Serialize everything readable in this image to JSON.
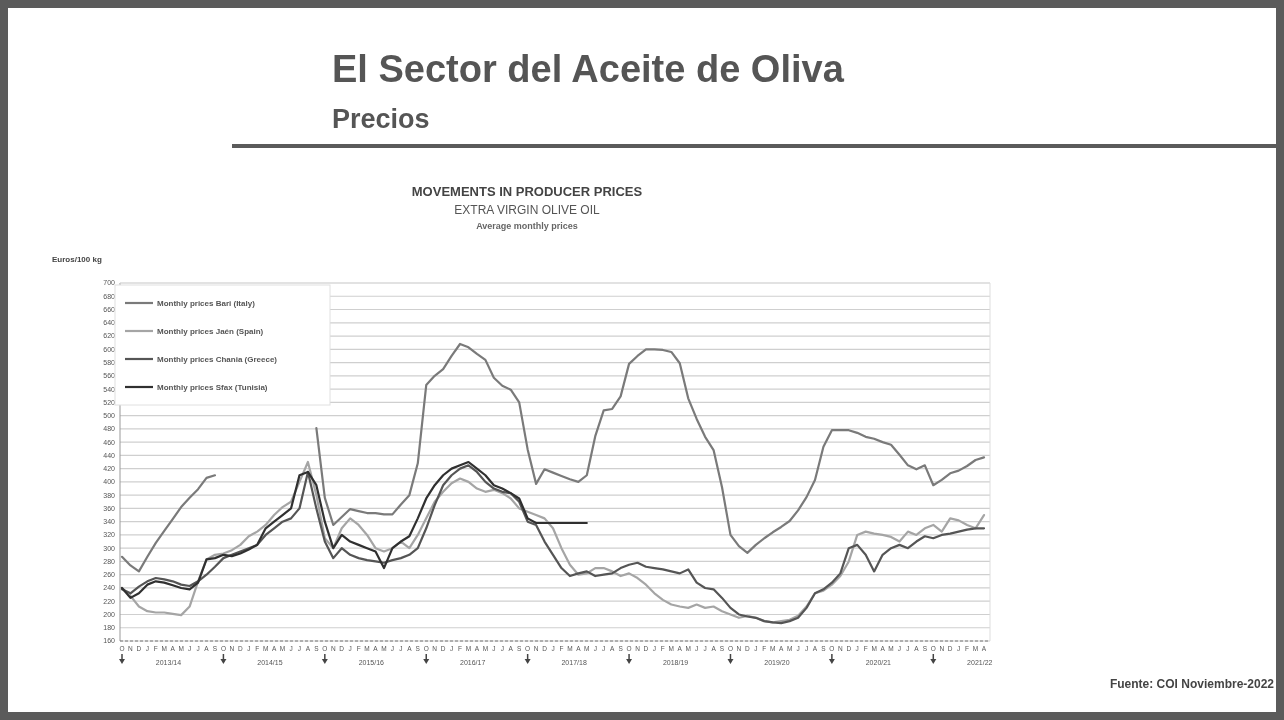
{
  "chart_data": {
    "type": "line",
    "title": "MOVEMENTS IN PRODUCER PRICES",
    "subtitle": "EXTRA VIRGIN OLIVE OIL",
    "ylabel": "Euros/100 kg",
    "categories": [
      "O",
      "N",
      "D",
      "J",
      "F",
      "M",
      "A",
      "M",
      "J",
      "J",
      "A",
      "S",
      "O",
      "N",
      "D",
      "J",
      "F",
      "M",
      "A",
      "M",
      "J",
      "J",
      "A",
      "S",
      "O",
      "N",
      "D",
      "J",
      "F",
      "M",
      "A",
      "M",
      "J",
      "J",
      "A",
      "S",
      "O",
      "N",
      "D",
      "J",
      "F",
      "M",
      "A",
      "M",
      "J",
      "J",
      "A",
      "S",
      "O",
      "N",
      "D",
      "J",
      "F",
      "M",
      "A",
      "M",
      "J",
      "J",
      "A",
      "S",
      "O",
      "N",
      "D",
      "J",
      "F",
      "M",
      "A",
      "M",
      "J",
      "J",
      "A",
      "S",
      "O",
      "N",
      "D",
      "J",
      "F",
      "M",
      "A",
      "M",
      "J",
      "J",
      "A",
      "S",
      "O",
      "N",
      "D",
      "J",
      "F",
      "M",
      "A",
      "M",
      "J",
      "J",
      "A",
      "S",
      "O",
      "N",
      "D",
      "J",
      "F",
      "M",
      "A"
    ],
    "series": [
      {
        "name": "Monthly prices Bari (Italy)",
        "color": "#7a7a7a",
        "values": [
          287,
          274,
          265,
          287,
          308,
          326,
          344,
          362,
          376,
          389,
          406,
          410,
          null,
          null,
          null,
          null,
          null,
          null,
          null,
          null,
          null,
          null,
          null,
          481,
          376,
          335,
          347,
          359,
          356,
          353,
          353,
          351,
          351,
          366,
          380,
          428,
          546,
          560,
          570,
          590,
          608,
          603,
          593,
          584,
          557,
          545,
          539,
          520,
          449,
          397,
          419,
          414,
          409,
          404,
          400,
          410,
          469,
          508,
          510,
          529,
          578,
          590,
          600,
          600,
          599,
          596,
          579,
          526,
          495,
          468,
          448,
          392,
          320,
          303,
          293,
          305,
          315,
          324,
          332,
          341,
          357,
          377,
          403,
          453,
          478,
          478,
          478,
          474,
          468,
          465,
          460,
          456,
          441,
          425,
          419,
          425,
          395,
          403,
          413,
          417,
          424,
          433,
          437
        ]
      },
      {
        "name": "Monthly prices Jaén (Spain)",
        "color": "#a5a5a5",
        "values": [
          240,
          228,
          212,
          205,
          203,
          203,
          201,
          199,
          212,
          250,
          283,
          290,
          292,
          297,
          305,
          318,
          325,
          335,
          350,
          362,
          370,
          400,
          430,
          380,
          315,
          300,
          330,
          345,
          335,
          320,
          300,
          295,
          300,
          310,
          300,
          320,
          345,
          370,
          385,
          398,
          405,
          400,
          390,
          385,
          388,
          383,
          375,
          360,
          355,
          350,
          345,
          330,
          300,
          275,
          260,
          262,
          270,
          270,
          265,
          258,
          262,
          255,
          245,
          232,
          222,
          215,
          212,
          210,
          215,
          210,
          212,
          205,
          200,
          195,
          198,
          195,
          190,
          188,
          190,
          192,
          198,
          212,
          232,
          236,
          245,
          258,
          280,
          320,
          325,
          322,
          320,
          317,
          310,
          325,
          320,
          330,
          335,
          325,
          345,
          342,
          335,
          330,
          350
        ]
      },
      {
        "name": "Monthly prices Chania (Greece)",
        "color": "#555555",
        "values": [
          238,
          232,
          242,
          250,
          255,
          253,
          250,
          245,
          243,
          250,
          260,
          272,
          285,
          290,
          295,
          300,
          305,
          320,
          330,
          340,
          345,
          360,
          415,
          360,
          310,
          285,
          300,
          290,
          285,
          282,
          280,
          278,
          282,
          285,
          290,
          300,
          330,
          365,
          395,
          410,
          420,
          425,
          415,
          400,
          390,
          385,
          383,
          370,
          340,
          335,
          310,
          290,
          270,
          258,
          262,
          265,
          258,
          260,
          262,
          270,
          275,
          278,
          272,
          270,
          268,
          265,
          262,
          268,
          248,
          240,
          238,
          225,
          210,
          200,
          197,
          195,
          190,
          188,
          187,
          190,
          195,
          210,
          232,
          238,
          248,
          262,
          300,
          305,
          290,
          265,
          290,
          300,
          305,
          300,
          310,
          318,
          315,
          320,
          322,
          325,
          328,
          330,
          330
        ]
      },
      {
        "name": "Monthly prices Sfax (Tunisia)",
        "color": "#303030",
        "values": [
          240,
          225,
          232,
          245,
          250,
          248,
          244,
          240,
          238,
          248,
          283,
          285,
          290,
          288,
          292,
          298,
          305,
          330,
          340,
          350,
          360,
          410,
          415,
          395,
          340,
          300,
          320,
          310,
          305,
          300,
          295,
          270,
          300,
          310,
          318,
          345,
          375,
          395,
          410,
          420,
          425,
          430,
          420,
          410,
          395,
          390,
          383,
          375,
          345,
          338,
          338,
          338,
          338,
          338,
          338,
          338,
          null,
          null,
          null,
          null,
          null,
          null,
          null,
          null,
          null,
          null,
          null,
          null,
          null,
          null,
          null,
          null,
          null,
          null,
          null,
          null,
          null,
          null,
          null,
          null,
          null,
          null,
          null,
          null,
          null,
          null,
          null,
          null,
          null,
          null,
          null,
          null,
          null,
          null,
          null,
          null,
          null,
          null,
          null,
          null,
          null,
          null,
          null
        ]
      }
    ],
    "ylim": [
      160,
      700
    ],
    "yticks": [
      160,
      180,
      200,
      220,
      240,
      260,
      280,
      300,
      320,
      340,
      360,
      380,
      400,
      420,
      440,
      460,
      480,
      500,
      520,
      540,
      560,
      580,
      600,
      620,
      640,
      660,
      680,
      700
    ],
    "grid": "y",
    "legend": "top left",
    "marker": "none",
    "line_style": "solid",
    "annotations": [
      "El Sector del Aceite de Oliva",
      "Precios",
      "Average monthly prices",
      "2013/14",
      "2014/15",
      "2015/16",
      "2016/17",
      "2017/18",
      "2018/19",
      "2019/20",
      "2020/21",
      "2021/22",
      "Fuente: COI Noviembre-2022"
    ]
  }
}
